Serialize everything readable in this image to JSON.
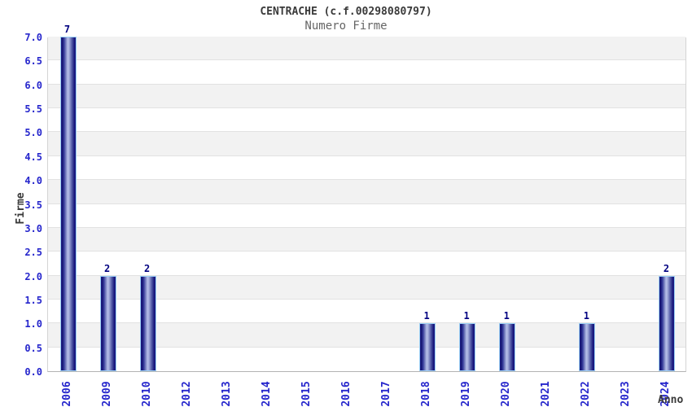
{
  "chart_data": {
    "type": "bar",
    "title": "CENTRACHE (c.f.00298080797)",
    "subtitle": "Numero Firme",
    "xlabel": "Anno",
    "ylabel": "Firme",
    "categories": [
      "2006",
      "2009",
      "2010",
      "2012",
      "2013",
      "2014",
      "2015",
      "2016",
      "2017",
      "2018",
      "2019",
      "2020",
      "2021",
      "2022",
      "2023",
      "2024"
    ],
    "values": [
      7,
      2,
      2,
      0,
      0,
      0,
      0,
      0,
      0,
      1,
      1,
      1,
      0,
      1,
      0,
      2
    ],
    "bar_value_labels": [
      "7",
      "2",
      "2",
      "",
      "",
      "",
      "",
      "",
      "",
      "1",
      "1",
      "1",
      "",
      "1",
      "",
      "2"
    ],
    "ylim": [
      0,
      7
    ],
    "y_tick_step": 0.5,
    "y_ticks": [
      "0.0",
      "0.5",
      "1.0",
      "1.5",
      "2.0",
      "2.5",
      "3.0",
      "3.5",
      "4.0",
      "4.5",
      "5.0",
      "5.5",
      "6.0",
      "6.5",
      "7.0"
    ],
    "grid": "horizontal-bands",
    "legend": "none",
    "colors": {
      "tick_label": "#2626cc",
      "bar_value_label": "#000080",
      "bar_dark": "#16167a",
      "bar_light": "#b6bfe8",
      "bar_border": "#9bd0f5",
      "band_gray": "#f2f2f2",
      "gridline": "#e2e2e2",
      "title_text": "#3a3a3a",
      "subtitle_text": "#666666",
      "background": "#ffffff"
    }
  }
}
